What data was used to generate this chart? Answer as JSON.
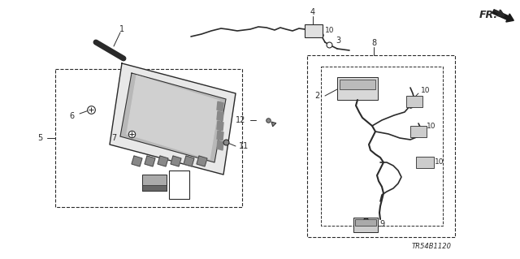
{
  "bg_color": "#ffffff",
  "line_color": "#2a2a2a",
  "diagram_code": "TR54B1120",
  "fig_width": 6.4,
  "fig_height": 3.19,
  "dpi": 100
}
